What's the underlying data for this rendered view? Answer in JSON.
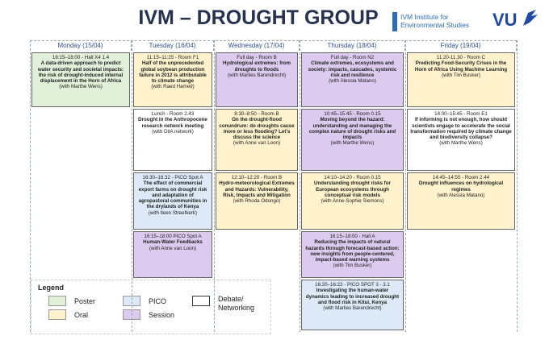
{
  "header": {
    "title": "IVM – DROUGHT GROUP",
    "ivm_logo": [
      "IVM Institute for",
      "Environmental Studies"
    ],
    "vu_logo": "VU"
  },
  "days": [
    "Monday (15/04)",
    "Tuesday (16/04)",
    "Wednesday (17/04)",
    "Thursday (18/04)",
    "Friday (19/04)"
  ],
  "sessions": [
    {
      "time": "16:15–18:00 - Hall X4 1.4",
      "title": "A data-driven approach to predict water security and societal impacts: the risk of drought-induced internal displacement in the Horn of Africa",
      "with": "(with Marthe Wens)"
    },
    {
      "time": "11:15–11:25 - Room F1",
      "title": "Half of the unprecedented global soybean production failure in 2012 is attributable to climate change",
      "with": "(with Raed Hamed)"
    },
    {
      "time": "Full day - Room B",
      "title": "Hydrological extremes: from droughts to floods",
      "with": "(with Marlies Barendrecht)"
    },
    {
      "time": "Full day - Room N2",
      "title": "Climate extremes, ecosystems and society: impacts, cascades, systemic risk and resilience",
      "with": "(with Alessia Matano)"
    },
    {
      "time": "11:20-11.30 - Room C",
      "title": "Predicting Food-Security Crises in the Horn of Africa Using Machine Learning",
      "with": "(with Tim Busker)"
    },
    {
      "time": "Lunch - Room 2.43",
      "title": "Drought in the Anthropocene research network meeting",
      "with": "(with DitA network)"
    },
    {
      "time": "8:30–8:50 - Room B",
      "title": "On the drought-flood conundrum: do droughts cause more or less flooding? Let's discuss the science",
      "with": "(with Anne van Loon)"
    },
    {
      "time": "10:45–15:45 - Room 0.15",
      "title": "Moving beyond the hazard: understanding and managing the complex nature of drought risks and impacts",
      "with": "(with Marthe Wens)"
    },
    {
      "time": "14:00–15:45 - Room E1",
      "title": "If informing is not enough, how should scientists engage to accelerate the social transformation required by climate change and biodiversity collapse?",
      "with": "(with Marthe Wens)"
    },
    {
      "time": "16:30–16:32 - PICO Spot A",
      "title": "The effect of commercial export farms on drought risk and adaptation of agropastoral communities in the drylands of Kenya",
      "with": "(with Ileen Streefkerk)"
    },
    {
      "time": "12:10–12:20 - Room B",
      "title": "Hydro-meteorological Extremes and Hazards: Vulnerability, Risk, Impacts and Mitigation",
      "with": "(with Rhoda Odongo)"
    },
    {
      "time": "14:10–14:20 - Room 0.15",
      "title": "Understanding drought risks for European ecosystems through conceptual risk models",
      "with": "(with Anne-Sophie Siemons)"
    },
    {
      "time": "14:45–14:55 - Room 2.44",
      "title": "Drought influences on hydrological regimes",
      "with": "(with Alessia Matano)"
    },
    {
      "time": "16:15–18:00 PICO Spot A",
      "title": "Human-Water Feedbacks",
      "with": "(with Anne van Loon)"
    },
    {
      "time": "16:15–18:00 - Hall A",
      "title": "Reducing the impacts of natural hazards through forecast-based action: new insights from people-centered, impact-based warning systems",
      "with": "(with Tim Busker)"
    },
    {
      "time": "16:20–16:22 - PICO SPOT 3 - 3.1",
      "title": "Investigating the human-water dynamics leading to increased drought and flood risk in Kitui, Kenya",
      "with": "(with Marlies Barendrecht)"
    }
  ],
  "legend": {
    "title": "Legend",
    "items": [
      "Poster",
      "Oral",
      "PICO",
      "Session",
      "Debate/ Networking"
    ]
  }
}
